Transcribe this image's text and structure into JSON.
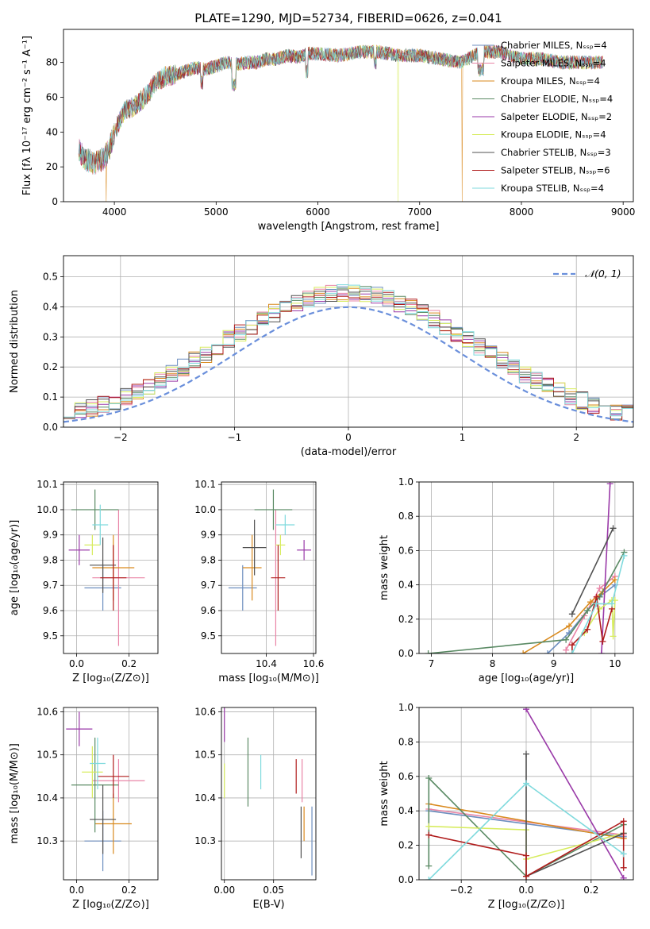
{
  "title": "PLATE=1290, MJD=52734, FIBERID=0626, z=0.041",
  "colors": [
    "#6c8ebf",
    "#e984a6",
    "#d98a1e",
    "#5a8a64",
    "#9a3aa8",
    "#d7ec5e",
    "#505050",
    "#b01c1c",
    "#7fdadd"
  ],
  "chart_data": [
    {
      "id": "spectrum",
      "type": "line",
      "title": "PLATE=1290, MJD=52734, FIBERID=0626, z=0.041",
      "xlabel": "wavelength [Angstrom, rest frame]",
      "ylabel": "Flux [fλ 10⁻¹⁷ erg cm⁻² s⁻¹ A⁻¹]",
      "xlim": [
        3500,
        9100
      ],
      "ylim": [
        0,
        99
      ],
      "xticks": [
        4000,
        5000,
        6000,
        7000,
        8000,
        9000
      ],
      "yticks": [
        0,
        20,
        40,
        60,
        80
      ],
      "legend": "top-right",
      "grid": false,
      "continuum": {
        "x": [
          3650,
          3700,
          3800,
          3900,
          3950,
          4000,
          4100,
          4200,
          4300,
          4400,
          4500,
          4600,
          4700,
          4800,
          4900,
          5000,
          5100,
          5200,
          5300,
          5400,
          5500,
          5600,
          5700,
          5800,
          5900,
          6000,
          6200,
          6400,
          6600,
          6800,
          7000,
          7200,
          7400,
          7600,
          7800,
          8000,
          8200,
          8400,
          8600,
          8800
        ],
        "y": [
          30,
          25,
          22,
          25,
          30,
          40,
          52,
          55,
          60,
          68,
          72,
          73,
          75,
          77,
          76,
          78,
          80,
          79,
          80,
          80,
          82,
          82,
          84,
          83,
          85,
          85,
          84,
          86,
          86,
          84,
          84,
          82,
          80,
          86,
          86,
          82,
          82,
          80,
          80,
          80
        ]
      },
      "series": [
        {
          "name": "Chabrier MILES, N_SSP=4",
          "color": "#6c8ebf"
        },
        {
          "name": "Salpeter MILES, N_SSP=4",
          "color": "#e984a6"
        },
        {
          "name": "Kroupa MILES, N_SSP=4",
          "color": "#d98a1e"
        },
        {
          "name": "Chabrier ELODIE, N_SSP=4",
          "color": "#5a8a64"
        },
        {
          "name": "Salpeter ELODIE, N_SSP=2",
          "color": "#9a3aa8"
        },
        {
          "name": "Kroupa ELODIE, N_SSP=4",
          "color": "#d7ec5e"
        },
        {
          "name": "Chabrier STELIB, N_SSP=3",
          "color": "#505050"
        },
        {
          "name": "Salpeter STELIB, N_SSP=6",
          "color": "#b01c1c"
        },
        {
          "name": "Kroupa STELIB, N_SSP=4",
          "color": "#7fdadd"
        }
      ],
      "dropouts": [
        {
          "x": 3920,
          "color": "#d98a1e"
        },
        {
          "x": 6790,
          "color": "#d7ec5e"
        },
        {
          "x": 7420,
          "color": "#d98a1e"
        }
      ]
    },
    {
      "id": "residual-hist",
      "type": "line",
      "xlabel": "(data-model)/error",
      "ylabel": "Normed distribution",
      "xlim": [
        -2.5,
        2.5
      ],
      "ylim": [
        0,
        0.57
      ],
      "xticks": [
        -2,
        -1,
        0,
        1,
        2
      ],
      "xtick_labels": [
        "−2",
        "−1",
        "0",
        "1",
        "2"
      ],
      "yticks": [
        0,
        0.1,
        0.2,
        0.3,
        0.4,
        0.5
      ],
      "ytick_labels": [
        "0.0",
        "0.1",
        "0.2",
        "0.3",
        "0.4",
        "0.5"
      ],
      "grid": true,
      "legend": "top-right",
      "reference": {
        "name": "𝒩(0, 1)",
        "color": "#6a8fdb"
      },
      "bin_width": 0.1
    },
    {
      "id": "age-vs-z",
      "type": "scatter",
      "xlabel": "Z [log₁₀(Z/Z⊙)]",
      "ylabel": "age  [log₁₀(age/yr)]",
      "xlim": [
        -0.05,
        0.31
      ],
      "ylim": [
        9.43,
        10.11
      ],
      "xticks": [
        0.0,
        0.2
      ],
      "xtick_labels": [
        "0.0",
        "0.2"
      ],
      "yticks": [
        9.5,
        9.6,
        9.7,
        9.8,
        9.9,
        10.0,
        10.1
      ],
      "ytick_labels": [
        "9.5",
        "9.6",
        "9.7",
        "9.8",
        "9.9",
        "10.0",
        "10.1"
      ],
      "grid": true,
      "points": [
        {
          "x": 0.1,
          "xerr": 0.07,
          "y": 9.69,
          "yerr": 0.09,
          "color": "#6c8ebf"
        },
        {
          "x": 0.16,
          "xerr": 0.1,
          "y": 9.73,
          "yerr": 0.27,
          "color": "#e984a6"
        },
        {
          "x": 0.14,
          "xerr": 0.08,
          "y": 9.77,
          "yerr": 0.13,
          "color": "#d98a1e"
        },
        {
          "x": 0.07,
          "xerr": 0.09,
          "y": 10.0,
          "yerr": 0.08,
          "color": "#5a8a64"
        },
        {
          "x": 0.01,
          "xerr": 0.04,
          "y": 9.84,
          "yerr": 0.06,
          "color": "#9a3aa8"
        },
        {
          "x": 0.06,
          "xerr": 0.03,
          "y": 9.86,
          "yerr": 0.04,
          "color": "#d7ec5e"
        },
        {
          "x": 0.1,
          "xerr": 0.05,
          "y": 9.78,
          "yerr": 0.11,
          "color": "#505050"
        },
        {
          "x": 0.14,
          "xerr": 0.05,
          "y": 9.73,
          "yerr": 0.13,
          "color": "#b01c1c"
        },
        {
          "x": 0.09,
          "xerr": 0.03,
          "y": 9.94,
          "yerr": 0.08,
          "color": "#7fdadd"
        }
      ]
    },
    {
      "id": "age-vs-mass",
      "type": "scatter",
      "xlabel": "mass [log₁₀(M/M⊙)]",
      "ylabel": "",
      "xlim": [
        10.21,
        10.61
      ],
      "ylim": [
        9.43,
        10.11
      ],
      "xticks": [
        10.4,
        10.6
      ],
      "xtick_labels": [
        "10.4",
        "10.6"
      ],
      "yticks": [
        9.5,
        9.6,
        9.7,
        9.8,
        9.9,
        10.0,
        10.1
      ],
      "ytick_labels": [
        "9.5",
        "9.6",
        "9.7",
        "9.8",
        "9.9",
        "10.0",
        "10.1"
      ],
      "grid": true,
      "points": [
        {
          "x": 10.3,
          "xerr": 0.06,
          "y": 9.69,
          "yerr": 0.09,
          "color": "#6c8ebf"
        },
        {
          "x": 10.44,
          "xerr": 0.0,
          "y": 9.73,
          "yerr": 0.27,
          "color": "#e984a6"
        },
        {
          "x": 10.34,
          "xerr": 0.04,
          "y": 9.77,
          "yerr": 0.13,
          "color": "#d98a1e"
        },
        {
          "x": 10.43,
          "xerr": 0.08,
          "y": 10.0,
          "yerr": 0.08,
          "color": "#5a8a64"
        },
        {
          "x": 10.56,
          "xerr": 0.03,
          "y": 9.84,
          "yerr": 0.04,
          "color": "#9a3aa8"
        },
        {
          "x": 10.46,
          "xerr": 0.02,
          "y": 9.86,
          "yerr": 0.04,
          "color": "#d7ec5e"
        },
        {
          "x": 10.35,
          "xerr": 0.05,
          "y": 9.85,
          "yerr": 0.11,
          "color": "#505050"
        },
        {
          "x": 10.45,
          "xerr": 0.03,
          "y": 9.73,
          "yerr": 0.13,
          "color": "#b01c1c"
        },
        {
          "x": 10.48,
          "xerr": 0.04,
          "y": 9.94,
          "yerr": 0.04,
          "color": "#7fdadd"
        }
      ]
    },
    {
      "id": "weight-vs-age",
      "type": "line",
      "xlabel": "age  [log₁₀(age/yr)]",
      "ylabel": "mass weight",
      "xlim": [
        6.8,
        10.3
      ],
      "ylim": [
        0,
        1
      ],
      "xticks": [
        7,
        8,
        9,
        10
      ],
      "xtick_labels": [
        "7",
        "8",
        "9",
        "10"
      ],
      "yticks": [
        0,
        0.2,
        0.4,
        0.6,
        0.8,
        1.0
      ],
      "ytick_labels": [
        "0.0",
        "0.2",
        "0.4",
        "0.6",
        "0.8",
        "1.0"
      ],
      "grid": true,
      "series": [
        {
          "color": "#6c8ebf",
          "x": [
            8.9,
            9.25,
            9.55,
            9.75,
            10.0
          ],
          "y": [
            0.0,
            0.12,
            0.25,
            0.33,
            0.4
          ]
        },
        {
          "color": "#e984a6",
          "x": [
            9.2,
            9.5,
            9.75,
            10.0
          ],
          "y": [
            0.02,
            0.22,
            0.38,
            0.45
          ]
        },
        {
          "color": "#d98a1e",
          "x": [
            8.5,
            9.25,
            9.6,
            9.8,
            10.0
          ],
          "y": [
            0.0,
            0.16,
            0.3,
            0.36,
            0.43
          ]
        },
        {
          "color": "#5a8a64",
          "x": [
            6.95,
            9.2,
            9.55,
            9.75,
            10.15
          ],
          "y": [
            0.0,
            0.08,
            0.25,
            0.33,
            0.59
          ]
        },
        {
          "color": "#9a3aa8",
          "x": [
            9.78,
            9.92
          ],
          "y": [
            0.0,
            0.99
          ]
        },
        {
          "color": "#d7ec5e",
          "x": [
            9.5,
            9.75,
            9.95,
            9.97,
            10.0
          ],
          "y": [
            0.12,
            0.26,
            0.31,
            0.1,
            0.31
          ]
        },
        {
          "color": "#505050",
          "x": [
            9.3,
            9.97
          ],
          "y": [
            0.23,
            0.73
          ]
        },
        {
          "color": "#b01c1c",
          "x": [
            9.3,
            9.3,
            9.55,
            9.7,
            9.8,
            9.95
          ],
          "y": [
            0.0,
            0.05,
            0.14,
            0.33,
            0.07,
            0.26
          ]
        },
        {
          "color": "#7fdadd",
          "x": [
            9.3,
            9.7,
            9.95,
            10.15
          ],
          "y": [
            0.0,
            0.29,
            0.29,
            0.57
          ]
        }
      ]
    },
    {
      "id": "mass-vs-z",
      "type": "scatter",
      "xlabel": "Z [log₁₀(Z/Z⊙)]",
      "ylabel": "mass [log₁₀(M/M⊙)]",
      "xlim": [
        -0.05,
        0.31
      ],
      "ylim": [
        10.21,
        10.61
      ],
      "xticks": [
        0.0,
        0.2
      ],
      "xtick_labels": [
        "0.0",
        "0.2"
      ],
      "yticks": [
        10.3,
        10.4,
        10.5,
        10.6
      ],
      "ytick_labels": [
        "10.3",
        "10.4",
        "10.5",
        "10.6"
      ],
      "grid": true,
      "points": [
        {
          "x": 0.1,
          "xerr": 0.07,
          "y": 10.3,
          "yerr": 0.07,
          "color": "#6c8ebf"
        },
        {
          "x": 0.16,
          "xerr": 0.1,
          "y": 10.44,
          "yerr": 0.05,
          "color": "#e984a6"
        },
        {
          "x": 0.14,
          "xerr": 0.07,
          "y": 10.34,
          "yerr": 0.07,
          "color": "#d98a1e"
        },
        {
          "x": 0.07,
          "xerr": 0.09,
          "y": 10.43,
          "yerr": 0.11,
          "color": "#5a8a64"
        },
        {
          "x": 0.01,
          "xerr": 0.05,
          "y": 10.56,
          "yerr": 0.04,
          "color": "#9a3aa8"
        },
        {
          "x": 0.06,
          "xerr": 0.04,
          "y": 10.46,
          "yerr": 0.06,
          "color": "#d7ec5e"
        },
        {
          "x": 0.1,
          "xerr": 0.05,
          "y": 10.35,
          "yerr": 0.08,
          "color": "#505050"
        },
        {
          "x": 0.14,
          "xerr": 0.06,
          "y": 10.45,
          "yerr": 0.05,
          "color": "#b01c1c"
        },
        {
          "x": 0.08,
          "xerr": 0.03,
          "y": 10.48,
          "yerr": 0.06,
          "color": "#7fdadd"
        }
      ]
    },
    {
      "id": "mass-vs-ebv",
      "type": "scatter",
      "xlabel": "E(B-V)",
      "ylabel": "",
      "xlim": [
        -0.003,
        0.093
      ],
      "ylim": [
        10.21,
        10.61
      ],
      "xticks": [
        0.0,
        0.05
      ],
      "xtick_labels": [
        "0.00",
        "0.05"
      ],
      "yticks": [
        10.3,
        10.4,
        10.5,
        10.6
      ],
      "ytick_labels": [
        "10.3",
        "10.4",
        "10.5",
        "10.6"
      ],
      "grid": true,
      "points": [
        {
          "x": 0.089,
          "xerr": 0.0,
          "y": 10.3,
          "yerr": 0.08,
          "color": "#6c8ebf"
        },
        {
          "x": 0.079,
          "xerr": 0.0,
          "y": 10.44,
          "yerr": 0.05,
          "color": "#e984a6"
        },
        {
          "x": 0.081,
          "xerr": 0.0,
          "y": 10.34,
          "yerr": 0.04,
          "color": "#d98a1e"
        },
        {
          "x": 0.024,
          "xerr": 0.0,
          "y": 10.46,
          "yerr": 0.08,
          "color": "#5a8a64"
        },
        {
          "x": 0.0,
          "xerr": 0.0,
          "y": 10.57,
          "yerr": 0.04,
          "color": "#9a3aa8"
        },
        {
          "x": 0.0,
          "xerr": 0.0,
          "y": 10.44,
          "yerr": 0.04,
          "color": "#d7ec5e"
        },
        {
          "x": 0.078,
          "xerr": 0.0,
          "y": 10.32,
          "yerr": 0.06,
          "color": "#505050"
        },
        {
          "x": 0.073,
          "xerr": 0.0,
          "y": 10.45,
          "yerr": 0.04,
          "color": "#b01c1c"
        },
        {
          "x": 0.037,
          "xerr": 0.0,
          "y": 10.46,
          "yerr": 0.04,
          "color": "#7fdadd"
        }
      ]
    },
    {
      "id": "weight-vs-z",
      "type": "line",
      "xlabel": "Z [log₁₀(Z/Z⊙)]",
      "ylabel": "mass weight",
      "xlim": [
        -0.33,
        0.33
      ],
      "ylim": [
        0,
        1
      ],
      "xticks": [
        -0.2,
        0.0,
        0.2
      ],
      "xtick_labels": [
        "−0.2",
        "0.0",
        "0.2"
      ],
      "yticks": [
        0,
        0.2,
        0.4,
        0.6,
        0.8,
        1.0
      ],
      "ytick_labels": [
        "0.0",
        "0.2",
        "0.4",
        "0.6",
        "0.8",
        "1.0"
      ],
      "grid": true,
      "series": [
        {
          "color": "#6c8ebf",
          "x": [
            -0.3,
            0.3
          ],
          "y": [
            0.4,
            0.25
          ]
        },
        {
          "color": "#e984a6",
          "x": [
            -0.3,
            0.3
          ],
          "y": [
            0.41,
            0.26
          ]
        },
        {
          "color": "#d98a1e",
          "x": [
            -0.3,
            0.3
          ],
          "y": [
            0.44,
            0.24
          ]
        },
        {
          "color": "#5a8a64",
          "x": [
            -0.3,
            -0.3,
            0.0,
            0.3
          ],
          "y": [
            0.08,
            0.59,
            0.02,
            0.32
          ]
        },
        {
          "color": "#9a3aa8",
          "x": [
            0.0,
            0.3
          ],
          "y": [
            0.99,
            0.01
          ]
        },
        {
          "color": "#d7ec5e",
          "x": [
            -0.3,
            0.0,
            0.0,
            0.3
          ],
          "y": [
            0.31,
            0.29,
            0.12,
            0.27
          ]
        },
        {
          "color": "#505050",
          "x": [
            0.0,
            0.0,
            0.3
          ],
          "y": [
            0.73,
            0.02,
            0.27
          ]
        },
        {
          "color": "#b01c1c",
          "x": [
            -0.3,
            0.0,
            0.0,
            0.3,
            0.3
          ],
          "y": [
            0.26,
            0.14,
            0.02,
            0.34,
            0.07
          ]
        },
        {
          "color": "#7fdadd",
          "x": [
            -0.3,
            0.0,
            0.3
          ],
          "y": [
            0.0,
            0.56,
            0.15
          ]
        }
      ]
    }
  ]
}
